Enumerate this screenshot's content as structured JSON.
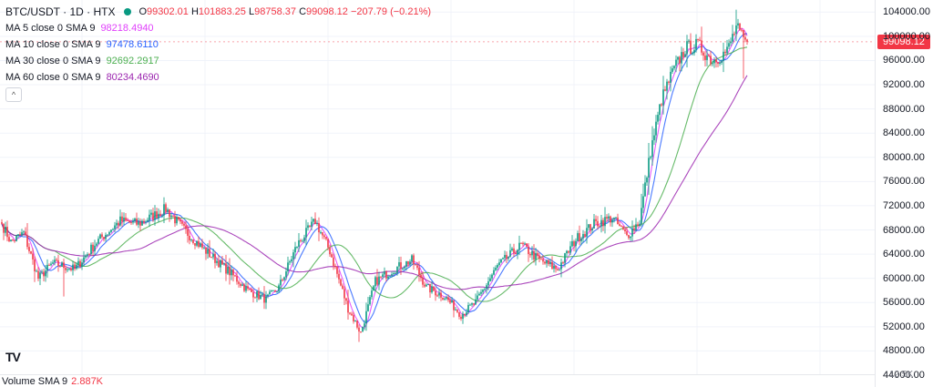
{
  "header": {
    "symbol": "BTC/USDT · 1D · HTX",
    "open": "99302.01",
    "high": "101883.25",
    "low": "98758.37",
    "close": "99098.12",
    "change": "−207.79 (−0.21%)"
  },
  "indicators": [
    {
      "label": "MA 5 close 0 SMA 9",
      "value": "98218.4940",
      "color": "#e040fb"
    },
    {
      "label": "MA 10 close 0 SMA 9",
      "value": "97478.6110",
      "color": "#2962ff"
    },
    {
      "label": "MA 30 close 0 SMA 9",
      "value": "92692.2917",
      "color": "#4caf50"
    },
    {
      "label": "MA 60 close 0 SMA 9",
      "value": "80234.4690",
      "color": "#9c27b0"
    }
  ],
  "volume_legend": {
    "label": "Volume SMA 9",
    "value": "2.887K"
  },
  "volume_axis_label": "12.5K",
  "logo": "TV",
  "chart_data": {
    "type": "candlestick",
    "y_axis": {
      "min": 44000,
      "max": 106000,
      "side": "right",
      "ticks": [
        "104000.00",
        "100000.00",
        "96000.00",
        "92000.00",
        "88000.00",
        "84000.00",
        "80000.00",
        "76000.00",
        "72000.00",
        "68000.00",
        "64000.00",
        "60000.00",
        "56000.00",
        "52000.00",
        "48000.00",
        "44000.00"
      ]
    },
    "last_price": 99098.12,
    "last_price_label": "99098.12",
    "key_points": [
      [
        0,
        69000
      ],
      [
        5,
        66000
      ],
      [
        12,
        67500
      ],
      [
        20,
        60000
      ],
      [
        28,
        62500
      ],
      [
        40,
        61500
      ],
      [
        52,
        66000
      ],
      [
        65,
        69500
      ],
      [
        75,
        69000
      ],
      [
        90,
        71500
      ],
      [
        100,
        68000
      ],
      [
        112,
        64500
      ],
      [
        125,
        61000
      ],
      [
        135,
        58000
      ],
      [
        145,
        56500
      ],
      [
        152,
        58500
      ],
      [
        162,
        65500
      ],
      [
        172,
        69500
      ],
      [
        180,
        64500
      ],
      [
        190,
        55000
      ],
      [
        197,
        51000
      ],
      [
        205,
        59500
      ],
      [
        215,
        61500
      ],
      [
        225,
        63000
      ],
      [
        233,
        58500
      ],
      [
        243,
        57000
      ],
      [
        252,
        54000
      ],
      [
        260,
        56000
      ],
      [
        272,
        62000
      ],
      [
        285,
        65500
      ],
      [
        295,
        63000
      ],
      [
        305,
        61500
      ],
      [
        315,
        66500
      ],
      [
        325,
        69000
      ],
      [
        335,
        70000
      ],
      [
        343,
        67000
      ],
      [
        350,
        69500
      ],
      [
        356,
        81000
      ],
      [
        362,
        89500
      ],
      [
        368,
        94000
      ],
      [
        375,
        98000
      ],
      [
        382,
        98500
      ],
      [
        390,
        96000
      ],
      [
        398,
        97500
      ],
      [
        403,
        101500
      ],
      [
        407,
        99300
      ],
      [
        409,
        99098
      ]
    ],
    "volatility_pct": 1.6,
    "wick_extremes": [
      {
        "i": 34,
        "low": 57000
      },
      {
        "i": 196,
        "low": 49500
      },
      {
        "i": 403,
        "high": 104400
      },
      {
        "i": 407,
        "low": 93000
      }
    ],
    "up_color": "#089981",
    "down_color": "#f23645",
    "moving_averages": [
      {
        "name": "MA 5",
        "period": 5,
        "color": "#e040fb"
      },
      {
        "name": "MA 10",
        "period": 10,
        "color": "#2962ff"
      },
      {
        "name": "MA 30",
        "period": 30,
        "color": "#4caf50"
      },
      {
        "name": "MA 60",
        "period": 60,
        "color": "#9c27b0"
      }
    ],
    "grid": true
  }
}
